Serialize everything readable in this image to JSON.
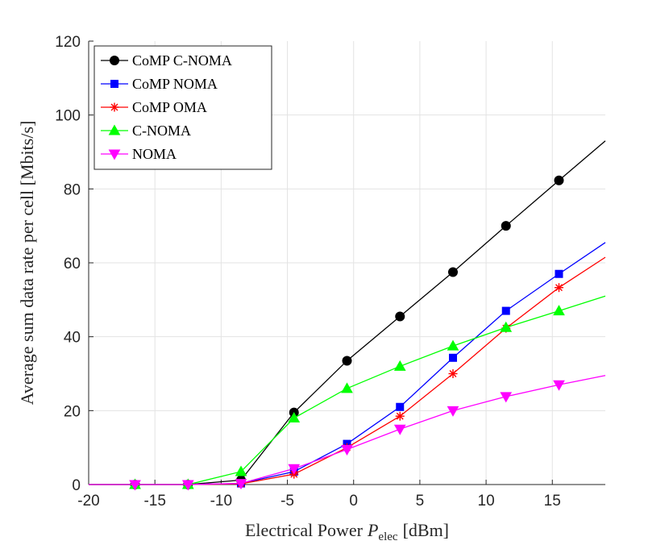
{
  "chart_data": {
    "type": "line",
    "title": "",
    "xlabel": "Electrical Power",
    "xlabel_var": "P",
    "xlabel_sub": "elec",
    "xlabel_unit": "[dBm]",
    "ylabel": "Average sum data rate per cell [Mbits/s]",
    "xlim": [
      -20,
      19
    ],
    "ylim": [
      0,
      120
    ],
    "xticks": [
      -20,
      -15,
      -10,
      -5,
      0,
      5,
      10,
      15
    ],
    "yticks": [
      0,
      20,
      40,
      60,
      80,
      100,
      120
    ],
    "grid": true,
    "legend_position": "top-left",
    "x": [
      -16.5,
      -12.5,
      -8.5,
      -4.5,
      -0.5,
      3.5,
      7.5,
      11.5,
      15.5,
      19
    ],
    "series": [
      {
        "name": "CoMP C-NOMA",
        "color": "#000000",
        "marker": "circle",
        "values": [
          0,
          0,
          1.2,
          19.5,
          33.5,
          45.5,
          57.5,
          70,
          82.3,
          93
        ]
      },
      {
        "name": "CoMP NOMA",
        "color": "#0000ff",
        "marker": "square",
        "values": [
          0,
          0,
          0.3,
          3.5,
          11,
          21,
          34.3,
          47,
          57,
          65.5
        ]
      },
      {
        "name": "CoMP OMA",
        "color": "#ff0000",
        "marker": "asterisk",
        "values": [
          0,
          0,
          0.2,
          2.8,
          10,
          18.5,
          30,
          42.3,
          53.3,
          61.5
        ]
      },
      {
        "name": "C-NOMA",
        "color": "#00ff00",
        "marker": "triangle-up",
        "values": [
          0,
          0,
          3.5,
          18,
          26,
          32,
          37.5,
          42.5,
          47,
          51
        ]
      },
      {
        "name": "NOMA",
        "color": "#ff00ff",
        "marker": "triangle-down",
        "values": [
          0,
          0,
          0.3,
          4.3,
          9.5,
          15,
          20,
          23.8,
          27,
          29.5
        ]
      }
    ]
  }
}
